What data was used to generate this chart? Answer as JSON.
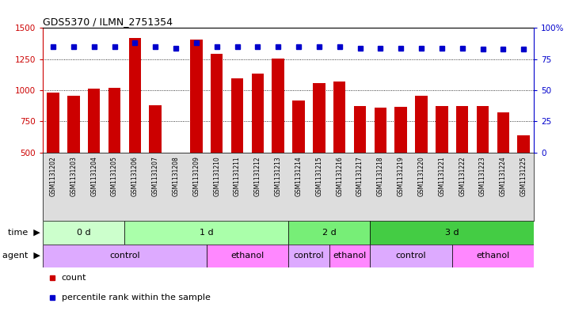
{
  "title": "GDS5370 / ILMN_2751354",
  "samples": [
    "GSM1131202",
    "GSM1131203",
    "GSM1131204",
    "GSM1131205",
    "GSM1131206",
    "GSM1131207",
    "GSM1131208",
    "GSM1131209",
    "GSM1131210",
    "GSM1131211",
    "GSM1131212",
    "GSM1131213",
    "GSM1131214",
    "GSM1131215",
    "GSM1131216",
    "GSM1131217",
    "GSM1131218",
    "GSM1131219",
    "GSM1131220",
    "GSM1131221",
    "GSM1131222",
    "GSM1131223",
    "GSM1131224",
    "GSM1131225"
  ],
  "counts": [
    980,
    955,
    1015,
    1020,
    1420,
    880,
    500,
    1410,
    1290,
    1095,
    1135,
    1255,
    920,
    1060,
    1070,
    870,
    860,
    865,
    955,
    875,
    870,
    875,
    820,
    640
  ],
  "percentile_ranks": [
    85,
    85,
    85,
    85,
    88,
    85,
    84,
    88,
    85,
    85,
    85,
    85,
    85,
    85,
    85,
    84,
    84,
    84,
    84,
    84,
    84,
    83,
    83,
    83
  ],
  "ylim_left": [
    500,
    1500
  ],
  "ylim_right": [
    0,
    100
  ],
  "yticks_left": [
    500,
    750,
    1000,
    1250,
    1500
  ],
  "yticks_right": [
    0,
    25,
    50,
    75,
    100
  ],
  "bar_color": "#cc0000",
  "dot_color": "#0000cc",
  "xtick_bg": "#dddddd",
  "time_groups": [
    {
      "label": "0 d",
      "start": 0,
      "end": 4,
      "color": "#ccffcc"
    },
    {
      "label": "1 d",
      "start": 4,
      "end": 12,
      "color": "#aaffaa"
    },
    {
      "label": "2 d",
      "start": 12,
      "end": 16,
      "color": "#77ee77"
    },
    {
      "label": "3 d",
      "start": 16,
      "end": 24,
      "color": "#44cc44"
    }
  ],
  "agent_groups": [
    {
      "label": "control",
      "start": 0,
      "end": 8,
      "color": "#ddaaff"
    },
    {
      "label": "ethanol",
      "start": 8,
      "end": 12,
      "color": "#ff88ff"
    },
    {
      "label": "control",
      "start": 12,
      "end": 14,
      "color": "#ddaaff"
    },
    {
      "label": "ethanol",
      "start": 14,
      "end": 16,
      "color": "#ff88ff"
    },
    {
      "label": "control",
      "start": 16,
      "end": 20,
      "color": "#ddaaff"
    },
    {
      "label": "ethanol",
      "start": 20,
      "end": 24,
      "color": "#ff88ff"
    }
  ],
  "legend_count_color": "#cc0000",
  "legend_pct_color": "#0000cc",
  "legend_count_label": "count",
  "legend_pct_label": "percentile rank within the sample"
}
